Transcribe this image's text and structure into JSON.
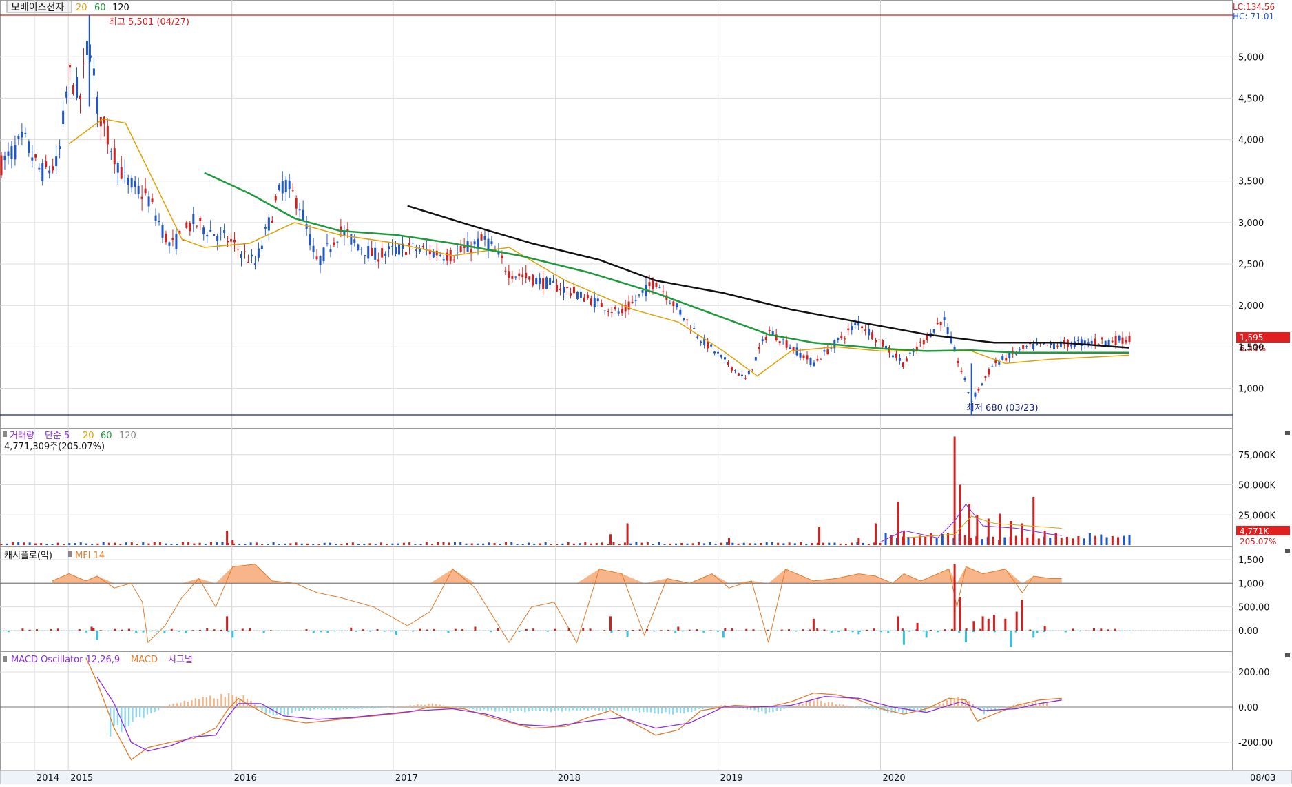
{
  "colors": {
    "up": "#d21f1f",
    "down": "#1f56c8",
    "ma20": "#e0a000",
    "ma60": "#1e9a3c",
    "ma120": "#111111",
    "mfi": "#e07a2a",
    "mfi_fill": "#f7b589",
    "macd": "#e07a2a",
    "signal": "#8a2be2",
    "cash_up": "#d21f1f",
    "cash_down": "#33c5dd",
    "osc_up": "#f5b488",
    "osc_down": "#8fd8ea"
  },
  "price_panel": {
    "name": "모베이스전자",
    "ma_periods": [
      "20",
      "60",
      "120"
    ],
    "lc_label": "LC:134.56",
    "hc_label": "HC:-71.01",
    "high_label": "최고 5,501 (04/27)",
    "low_label": "최저 680 (03/23)",
    "last_price_label": "1,595",
    "last_change_label": "6.33%",
    "y_ticks": [
      "5,000",
      "4,500",
      "4,000",
      "3,500",
      "3,000",
      "2,500",
      "2,000",
      "1,500",
      "1,000"
    ]
  },
  "volume_panel": {
    "title": "거래량",
    "ma_type": "단순 5",
    "ma_periods": [
      "20",
      "60",
      "120"
    ],
    "value_label": "4,771,309주(205.07%)",
    "y_ticks": [
      "75,000K",
      "50,000K",
      "25,000K"
    ],
    "last_label": "4,771K",
    "last_pct_label": "205.07%"
  },
  "cash_panel": {
    "title": "캐시플로(억)",
    "mfi_label": "MFI 14",
    "y_ticks": [
      "1,500",
      "1,000",
      "500.00",
      "0.00"
    ]
  },
  "macd_panel": {
    "title": "MACD Oscillator 12,26,9",
    "macd_label": "MACD",
    "signal_label": "시그널",
    "y_ticks": [
      "200.00",
      "0.00",
      "-200.00"
    ]
  },
  "x_axis": {
    "labels": [
      "2014",
      "2015",
      "2016",
      "2017",
      "2018",
      "2019",
      "2020"
    ],
    "right_label": "08/03"
  },
  "chart_data": {
    "type": "candlestick",
    "x_labels": [
      "2014",
      "2015",
      "2016",
      "2017",
      "2018",
      "2019",
      "2020"
    ],
    "price_range": [
      680,
      5501
    ],
    "high": {
      "value": 5501,
      "date": "04/27"
    },
    "low": {
      "value": 680,
      "date": "03/23"
    },
    "last_close": 1595,
    "last_change_pct": 6.33,
    "anchors": [
      {
        "t": 0.0,
        "p": 3700
      },
      {
        "t": 0.02,
        "p": 4000
      },
      {
        "t": 0.035,
        "p": 3600
      },
      {
        "t": 0.05,
        "p": 3700
      },
      {
        "t": 0.06,
        "p": 4800
      },
      {
        "t": 0.07,
        "p": 4500
      },
      {
        "t": 0.078,
        "p": 5300
      },
      {
        "t": 0.085,
        "p": 4400
      },
      {
        "t": 0.095,
        "p": 4000
      },
      {
        "t": 0.11,
        "p": 3500
      },
      {
        "t": 0.13,
        "p": 3300
      },
      {
        "t": 0.15,
        "p": 2700
      },
      {
        "t": 0.17,
        "p": 3000
      },
      {
        "t": 0.2,
        "p": 2800
      },
      {
        "t": 0.225,
        "p": 2500
      },
      {
        "t": 0.25,
        "p": 3500
      },
      {
        "t": 0.265,
        "p": 3200
      },
      {
        "t": 0.28,
        "p": 2500
      },
      {
        "t": 0.3,
        "p": 2900
      },
      {
        "t": 0.33,
        "p": 2600
      },
      {
        "t": 0.36,
        "p": 2700
      },
      {
        "t": 0.4,
        "p": 2600
      },
      {
        "t": 0.43,
        "p": 2800
      },
      {
        "t": 0.45,
        "p": 2400
      },
      {
        "t": 0.5,
        "p": 2200
      },
      {
        "t": 0.55,
        "p": 1900
      },
      {
        "t": 0.58,
        "p": 2300
      },
      {
        "t": 0.62,
        "p": 1600
      },
      {
        "t": 0.66,
        "p": 1100
      },
      {
        "t": 0.68,
        "p": 1700
      },
      {
        "t": 0.72,
        "p": 1300
      },
      {
        "t": 0.76,
        "p": 1800
      },
      {
        "t": 0.8,
        "p": 1300
      },
      {
        "t": 0.835,
        "p": 1850
      },
      {
        "t": 0.86,
        "p": 850
      },
      {
        "t": 0.88,
        "p": 1300
      },
      {
        "t": 0.91,
        "p": 1500
      },
      {
        "t": 1.0,
        "p": 1595
      }
    ],
    "ma_lines": [
      {
        "period": "20",
        "points": [
          [
            0.06,
            3950
          ],
          [
            0.09,
            4250
          ],
          [
            0.11,
            4200
          ],
          [
            0.135,
            3500
          ],
          [
            0.16,
            2800
          ],
          [
            0.18,
            2700
          ],
          [
            0.22,
            2750
          ],
          [
            0.26,
            3000
          ],
          [
            0.3,
            2850
          ],
          [
            0.35,
            2750
          ],
          [
            0.4,
            2600
          ],
          [
            0.45,
            2700
          ],
          [
            0.5,
            2300
          ],
          [
            0.56,
            1950
          ],
          [
            0.6,
            1800
          ],
          [
            0.64,
            1450
          ],
          [
            0.67,
            1150
          ],
          [
            0.7,
            1450
          ],
          [
            0.74,
            1500
          ],
          [
            0.78,
            1450
          ],
          [
            0.83,
            1450
          ],
          [
            0.86,
            1450
          ],
          [
            0.89,
            1300
          ],
          [
            0.93,
            1350
          ],
          [
            1.0,
            1400
          ]
        ]
      },
      {
        "period": "60",
        "points": [
          [
            0.18,
            3600
          ],
          [
            0.22,
            3350
          ],
          [
            0.26,
            3050
          ],
          [
            0.3,
            2900
          ],
          [
            0.35,
            2850
          ],
          [
            0.4,
            2750
          ],
          [
            0.46,
            2600
          ],
          [
            0.52,
            2400
          ],
          [
            0.58,
            2150
          ],
          [
            0.63,
            1900
          ],
          [
            0.68,
            1650
          ],
          [
            0.72,
            1550
          ],
          [
            0.78,
            1480
          ],
          [
            0.82,
            1450
          ],
          [
            0.86,
            1460
          ],
          [
            0.9,
            1430
          ],
          [
            1.0,
            1430
          ]
        ]
      },
      {
        "period": "120",
        "points": [
          [
            0.36,
            3200
          ],
          [
            0.42,
            2950
          ],
          [
            0.47,
            2750
          ],
          [
            0.53,
            2550
          ],
          [
            0.58,
            2300
          ],
          [
            0.64,
            2150
          ],
          [
            0.7,
            1950
          ],
          [
            0.76,
            1800
          ],
          [
            0.82,
            1650
          ],
          [
            0.88,
            1550
          ],
          [
            0.94,
            1550
          ],
          [
            1.0,
            1490
          ]
        ]
      }
    ],
    "volume": {
      "unit": "K",
      "ticks": [
        25000,
        50000,
        75000
      ],
      "last_value": 4771,
      "spikes": [
        {
          "t": 0.2,
          "v": 12000
        },
        {
          "t": 0.205,
          "v": 4000
        },
        {
          "t": 0.54,
          "v": 9000
        },
        {
          "t": 0.555,
          "v": 18000
        },
        {
          "t": 0.645,
          "v": 6000
        },
        {
          "t": 0.725,
          "v": 15000
        },
        {
          "t": 0.76,
          "v": 6000
        },
        {
          "t": 0.775,
          "v": 18000
        },
        {
          "t": 0.795,
          "v": 36000
        },
        {
          "t": 0.8,
          "v": 12000
        },
        {
          "t": 0.845,
          "v": 90000
        },
        {
          "t": 0.85,
          "v": 50000
        },
        {
          "t": 0.858,
          "v": 34000
        },
        {
          "t": 0.865,
          "v": 25000
        },
        {
          "t": 0.875,
          "v": 22000
        },
        {
          "t": 0.885,
          "v": 26000
        },
        {
          "t": 0.895,
          "v": 20000
        },
        {
          "t": 0.905,
          "v": 18000
        },
        {
          "t": 0.915,
          "v": 40000
        },
        {
          "t": 0.925,
          "v": 12000
        },
        {
          "t": 0.935,
          "v": 10000
        }
      ]
    },
    "cashflow": {
      "unit": "억",
      "ticks": [
        0,
        500,
        1000,
        1500
      ],
      "mfi_points": [
        [
          0.045,
          1050
        ],
        [
          0.06,
          1200
        ],
        [
          0.075,
          1050
        ],
        [
          0.085,
          1150
        ],
        [
          0.1,
          900
        ],
        [
          0.115,
          1000
        ],
        [
          0.125,
          600
        ],
        [
          0.13,
          -250
        ],
        [
          0.145,
          100
        ],
        [
          0.16,
          700
        ],
        [
          0.175,
          1100
        ],
        [
          0.19,
          500
        ],
        [
          0.205,
          1350
        ],
        [
          0.225,
          1400
        ],
        [
          0.24,
          1050
        ],
        [
          0.26,
          1000
        ],
        [
          0.28,
          800
        ],
        [
          0.3,
          700
        ],
        [
          0.33,
          500
        ],
        [
          0.36,
          100
        ],
        [
          0.38,
          400
        ],
        [
          0.4,
          1300
        ],
        [
          0.42,
          900
        ],
        [
          0.45,
          -250
        ],
        [
          0.47,
          500
        ],
        [
          0.49,
          600
        ],
        [
          0.51,
          -250
        ],
        [
          0.53,
          1300
        ],
        [
          0.55,
          1200
        ],
        [
          0.57,
          -100
        ],
        [
          0.59,
          1100
        ],
        [
          0.61,
          1000
        ],
        [
          0.63,
          1200
        ],
        [
          0.645,
          900
        ],
        [
          0.665,
          1050
        ],
        [
          0.68,
          -250
        ],
        [
          0.695,
          1300
        ],
        [
          0.72,
          1050
        ],
        [
          0.74,
          1100
        ],
        [
          0.76,
          1200
        ],
        [
          0.775,
          1150
        ],
        [
          0.79,
          1000
        ],
        [
          0.8,
          1200
        ],
        [
          0.815,
          1050
        ],
        [
          0.83,
          1200
        ],
        [
          0.84,
          1300
        ],
        [
          0.847,
          500
        ],
        [
          0.855,
          1350
        ],
        [
          0.87,
          1200
        ],
        [
          0.89,
          1300
        ],
        [
          0.905,
          800
        ],
        [
          0.915,
          1150
        ],
        [
          0.93,
          1100
        ],
        [
          0.94,
          1100
        ]
      ],
      "bars": [
        [
          0.08,
          80
        ],
        [
          0.085,
          -200
        ],
        [
          0.2,
          300
        ],
        [
          0.205,
          -150
        ],
        [
          0.31,
          60
        ],
        [
          0.35,
          -90
        ],
        [
          0.42,
          80
        ],
        [
          0.54,
          300
        ],
        [
          0.555,
          -130
        ],
        [
          0.6,
          80
        ],
        [
          0.64,
          -150
        ],
        [
          0.72,
          250
        ],
        [
          0.76,
          -80
        ],
        [
          0.795,
          300
        ],
        [
          0.8,
          -300
        ],
        [
          0.812,
          160
        ],
        [
          0.82,
          -150
        ],
        [
          0.845,
          1400
        ],
        [
          0.85,
          700
        ],
        [
          0.855,
          -250
        ],
        [
          0.862,
          200
        ],
        [
          0.87,
          300
        ],
        [
          0.875,
          250
        ],
        [
          0.88,
          330
        ],
        [
          0.89,
          250
        ],
        [
          0.895,
          -350
        ],
        [
          0.9,
          400
        ],
        [
          0.905,
          650
        ],
        [
          0.915,
          -150
        ],
        [
          0.925,
          100
        ]
      ]
    },
    "macd": {
      "ticks": [
        -200,
        0,
        200
      ],
      "macd_points": [
        [
          0.075,
          280
        ],
        [
          0.085,
          140
        ],
        [
          0.1,
          -120
        ],
        [
          0.115,
          -300
        ],
        [
          0.13,
          -230
        ],
        [
          0.15,
          -200
        ],
        [
          0.17,
          -180
        ],
        [
          0.19,
          -120
        ],
        [
          0.2,
          -20
        ],
        [
          0.21,
          50
        ],
        [
          0.22,
          10
        ],
        [
          0.24,
          -60
        ],
        [
          0.27,
          -90
        ],
        [
          0.3,
          -70
        ],
        [
          0.33,
          -50
        ],
        [
          0.36,
          -30
        ],
        [
          0.38,
          0
        ],
        [
          0.41,
          -10
        ],
        [
          0.44,
          -70
        ],
        [
          0.47,
          -120
        ],
        [
          0.5,
          -110
        ],
        [
          0.52,
          -60
        ],
        [
          0.54,
          -20
        ],
        [
          0.56,
          -90
        ],
        [
          0.58,
          -160
        ],
        [
          0.6,
          -130
        ],
        [
          0.62,
          -20
        ],
        [
          0.65,
          10
        ],
        [
          0.68,
          0
        ],
        [
          0.7,
          30
        ],
        [
          0.72,
          80
        ],
        [
          0.74,
          70
        ],
        [
          0.76,
          40
        ],
        [
          0.78,
          -10
        ],
        [
          0.8,
          -40
        ],
        [
          0.82,
          -10
        ],
        [
          0.84,
          50
        ],
        [
          0.855,
          40
        ],
        [
          0.865,
          -80
        ],
        [
          0.88,
          -40
        ],
        [
          0.9,
          10
        ],
        [
          0.92,
          40
        ],
        [
          0.94,
          50
        ]
      ],
      "signal_points": [
        [
          0.085,
          170
        ],
        [
          0.1,
          20
        ],
        [
          0.115,
          -200
        ],
        [
          0.13,
          -250
        ],
        [
          0.15,
          -220
        ],
        [
          0.17,
          -170
        ],
        [
          0.19,
          -160
        ],
        [
          0.2,
          -60
        ],
        [
          0.21,
          20
        ],
        [
          0.23,
          20
        ],
        [
          0.25,
          -50
        ],
        [
          0.28,
          -70
        ],
        [
          0.31,
          -60
        ],
        [
          0.34,
          -40
        ],
        [
          0.37,
          -20
        ],
        [
          0.4,
          -10
        ],
        [
          0.43,
          -40
        ],
        [
          0.46,
          -100
        ],
        [
          0.49,
          -110
        ],
        [
          0.52,
          -80
        ],
        [
          0.55,
          -60
        ],
        [
          0.58,
          -120
        ],
        [
          0.61,
          -90
        ],
        [
          0.64,
          0
        ],
        [
          0.67,
          0
        ],
        [
          0.7,
          10
        ],
        [
          0.73,
          60
        ],
        [
          0.76,
          50
        ],
        [
          0.79,
          0
        ],
        [
          0.82,
          -30
        ],
        [
          0.85,
          30
        ],
        [
          0.87,
          -20
        ],
        [
          0.9,
          -10
        ],
        [
          0.92,
          20
        ],
        [
          0.94,
          40
        ]
      ],
      "osc_bars": [
        [
          0.095,
          -160
        ],
        [
          0.12,
          -80
        ],
        [
          0.15,
          20
        ],
        [
          0.2,
          70
        ],
        [
          0.215,
          60
        ],
        [
          0.24,
          -60
        ],
        [
          0.27,
          -20
        ],
        [
          0.33,
          -10
        ],
        [
          0.38,
          20
        ],
        [
          0.42,
          -15
        ],
        [
          0.45,
          -30
        ],
        [
          0.52,
          -20
        ],
        [
          0.56,
          -25
        ],
        [
          0.6,
          -40
        ],
        [
          0.64,
          15
        ],
        [
          0.68,
          -40
        ],
        [
          0.72,
          40
        ],
        [
          0.74,
          20
        ],
        [
          0.79,
          -35
        ],
        [
          0.82,
          -20
        ],
        [
          0.845,
          60
        ],
        [
          0.86,
          30
        ],
        [
          0.87,
          -40
        ],
        [
          0.9,
          20
        ],
        [
          0.93,
          30
        ]
      ]
    }
  }
}
